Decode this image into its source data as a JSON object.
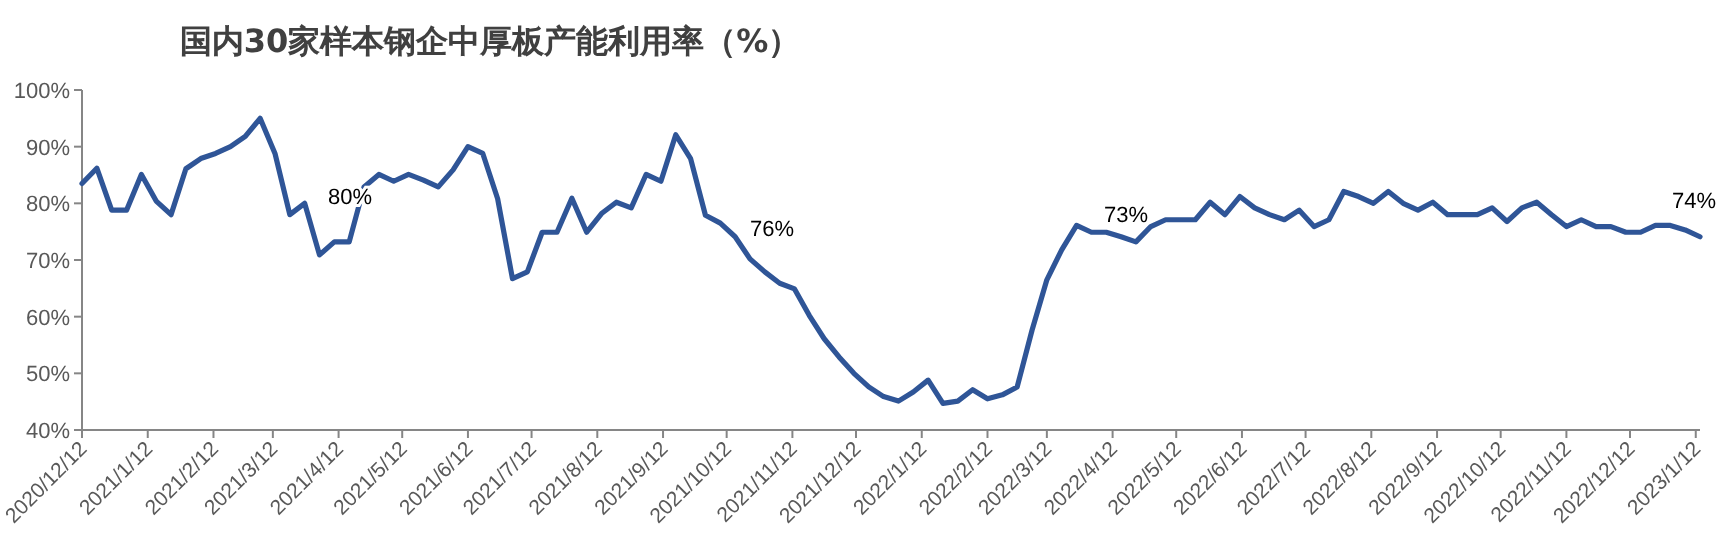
{
  "chart_data": {
    "type": "line",
    "title": "国内30家样本钢企中厚板产能利用率（%）",
    "x": [
      "2020-12-12",
      "2020-12-19",
      "2020-12-26",
      "2021-01-02",
      "2021-01-09",
      "2021-01-16",
      "2021-01-23",
      "2021-01-30",
      "2021-02-06",
      "2021-02-13",
      "2021-02-20",
      "2021-02-27",
      "2021-03-06",
      "2021-03-13",
      "2021-03-20",
      "2021-03-27",
      "2021-04-03",
      "2021-04-10",
      "2021-04-17",
      "2021-04-24",
      "2021-05-01",
      "2021-05-08",
      "2021-05-15",
      "2021-05-22",
      "2021-05-29",
      "2021-06-05",
      "2021-06-12",
      "2021-06-19",
      "2021-06-26",
      "2021-07-03",
      "2021-07-10",
      "2021-07-17",
      "2021-07-24",
      "2021-07-31",
      "2021-08-07",
      "2021-08-14",
      "2021-08-21",
      "2021-08-28",
      "2021-09-04",
      "2021-09-11",
      "2021-09-18",
      "2021-09-25",
      "2021-10-02",
      "2021-10-09",
      "2021-10-16",
      "2021-10-23",
      "2021-10-30",
      "2021-11-06",
      "2021-11-13",
      "2021-11-20",
      "2021-11-27",
      "2021-12-04",
      "2021-12-11",
      "2021-12-18",
      "2021-12-25",
      "2022-01-01",
      "2022-01-08",
      "2022-01-15",
      "2022-01-22",
      "2022-01-29",
      "2022-02-05",
      "2022-02-12",
      "2022-02-19",
      "2022-02-26",
      "2022-03-05",
      "2022-03-12",
      "2022-03-19",
      "2022-03-26",
      "2022-04-02",
      "2022-04-09",
      "2022-04-16",
      "2022-04-23",
      "2022-04-30",
      "2022-05-07",
      "2022-05-14",
      "2022-05-21",
      "2022-05-28",
      "2022-06-04",
      "2022-06-11",
      "2022-06-18",
      "2022-06-25",
      "2022-07-02",
      "2022-07-09",
      "2022-07-16",
      "2022-07-23",
      "2022-07-30",
      "2022-08-06",
      "2022-08-13",
      "2022-08-20",
      "2022-08-27",
      "2022-09-03",
      "2022-09-10",
      "2022-09-17",
      "2022-09-24",
      "2022-10-01",
      "2022-10-08",
      "2022-10-15",
      "2022-10-22",
      "2022-10-29",
      "2022-11-05",
      "2022-11-12",
      "2022-11-19",
      "2022-11-26",
      "2022-12-03",
      "2022-12-10",
      "2022-12-17",
      "2022-12-24",
      "2022-12-31",
      "2023-01-07",
      "2023-01-14"
    ],
    "series": [
      {
        "color": "#2f5597",
        "values": [
          83.5,
          86.2,
          78.8,
          78.8,
          85.1,
          80.4,
          78,
          86.1,
          87.9,
          88.8,
          90,
          91.8,
          95,
          88.8,
          78,
          80,
          70.9,
          73.2,
          73.2,
          82.9,
          85.1,
          83.9,
          85.1,
          84.1,
          82.9,
          85.9,
          90,
          88.8,
          80.8,
          66.7,
          67.9,
          74.9,
          74.9,
          80.9,
          74.9,
          78.2,
          80.2,
          79.2,
          85.1,
          83.9,
          92.1,
          87.9,
          77.9,
          76.5,
          74.1,
          70.2,
          67.9,
          65.9,
          64.9,
          60.2,
          56.1,
          52.9,
          50,
          47.6,
          45.9,
          45.1,
          46.7,
          48.8,
          44.7,
          45.1,
          47.1,
          45.5,
          46.2,
          47.6,
          57.6,
          66.5,
          71.8,
          76.1,
          74.9,
          74.9,
          74.1,
          73.2,
          75.9,
          77.1,
          77.1,
          77.1,
          80.2,
          78,
          81.2,
          79.2,
          78,
          77.1,
          78.8,
          75.9,
          77.1,
          82.1,
          81.2,
          80,
          82.1,
          80,
          78.8,
          80.2,
          78,
          78,
          78,
          79.2,
          76.8,
          79.2,
          80.2,
          78,
          75.9,
          77.1,
          75.9,
          75.9,
          74.9,
          74.9,
          76.1,
          76.1,
          75.3,
          74.1
        ]
      }
    ],
    "xlim": [
      "2020-12-12",
      "2023-01-14"
    ],
    "xticks": [
      {
        "value": "2020-12-12",
        "label": "2020/12/12"
      },
      {
        "value": "2021-01-12",
        "label": "2021/1/12"
      },
      {
        "value": "2021-02-12",
        "label": "2021/2/12"
      },
      {
        "value": "2021-03-12",
        "label": "2021/3/12"
      },
      {
        "value": "2021-04-12",
        "label": "2021/4/12"
      },
      {
        "value": "2021-05-12",
        "label": "2021/5/12"
      },
      {
        "value": "2021-06-12",
        "label": "2021/6/12"
      },
      {
        "value": "2021-07-12",
        "label": "2021/7/12"
      },
      {
        "value": "2021-08-12",
        "label": "2021/8/12"
      },
      {
        "value": "2021-09-12",
        "label": "2021/9/12"
      },
      {
        "value": "2021-10-12",
        "label": "2021/10/12"
      },
      {
        "value": "2021-11-12",
        "label": "2021/11/12"
      },
      {
        "value": "2021-12-12",
        "label": "2021/12/12"
      },
      {
        "value": "2022-01-12",
        "label": "2022/1/12"
      },
      {
        "value": "2022-02-12",
        "label": "2022/2/12"
      },
      {
        "value": "2022-03-12",
        "label": "2022/3/12"
      },
      {
        "value": "2022-04-12",
        "label": "2022/4/12"
      },
      {
        "value": "2022-05-12",
        "label": "2022/5/12"
      },
      {
        "value": "2022-06-12",
        "label": "2022/6/12"
      },
      {
        "value": "2022-07-12",
        "label": "2022/7/12"
      },
      {
        "value": "2022-08-12",
        "label": "2022/8/12"
      },
      {
        "value": "2022-09-12",
        "label": "2022/9/12"
      },
      {
        "value": "2022-10-12",
        "label": "2022/10/12"
      },
      {
        "value": "2022-11-12",
        "label": "2022/11/12"
      },
      {
        "value": "2022-12-12",
        "label": "2022/12/12"
      },
      {
        "value": "2023-01-12",
        "label": "2023/1/12"
      }
    ],
    "ylim": [
      40,
      100
    ],
    "yticks": [
      {
        "value": 40,
        "label": "40%"
      },
      {
        "value": 50,
        "label": "50%"
      },
      {
        "value": 60,
        "label": "60%"
      },
      {
        "value": 70,
        "label": "70%"
      },
      {
        "value": 80,
        "label": "80%"
      },
      {
        "value": 90,
        "label": "90%"
      },
      {
        "value": 100,
        "label": "100%"
      }
    ],
    "annotations": [
      "80%",
      "76%",
      "73%",
      "74%"
    ],
    "marker": "none",
    "line_style": "solid"
  }
}
